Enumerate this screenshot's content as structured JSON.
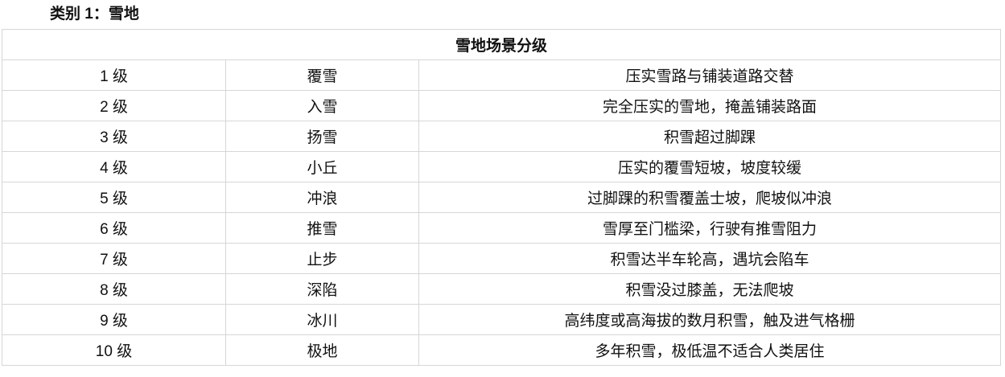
{
  "heading": "类别 1：雪地",
  "table": {
    "title": "雪地场景分级",
    "rows": [
      {
        "level": "1 级",
        "name": "覆雪",
        "description": "压实雪路与铺装道路交替"
      },
      {
        "level": "2 级",
        "name": "入雪",
        "description": "完全压实的雪地，掩盖铺装路面"
      },
      {
        "level": "3 级",
        "name": "扬雪",
        "description": "积雪超过脚踝"
      },
      {
        "level": "4 级",
        "name": "小丘",
        "description": "压实的覆雪短坡，坡度较缓"
      },
      {
        "level": "5 级",
        "name": "冲浪",
        "description": "过脚踝的积雪覆盖士坡，爬坡似冲浪"
      },
      {
        "level": "6 级",
        "name": "推雪",
        "description": "雪厚至门槛梁，行驶有推雪阻力"
      },
      {
        "level": "7 级",
        "name": "止步",
        "description": "积雪达半车轮高，遇坑会陷车"
      },
      {
        "level": "8 级",
        "name": "深陷",
        "description": "积雪没过膝盖，无法爬坡"
      },
      {
        "level": "9 级",
        "name": "冰川",
        "description": "高纬度或高海拔的数月积雪，触及进气格栅"
      },
      {
        "level": "10 级",
        "name": "极地",
        "description": "多年积雪，极低温不适合人类居住"
      }
    ]
  }
}
